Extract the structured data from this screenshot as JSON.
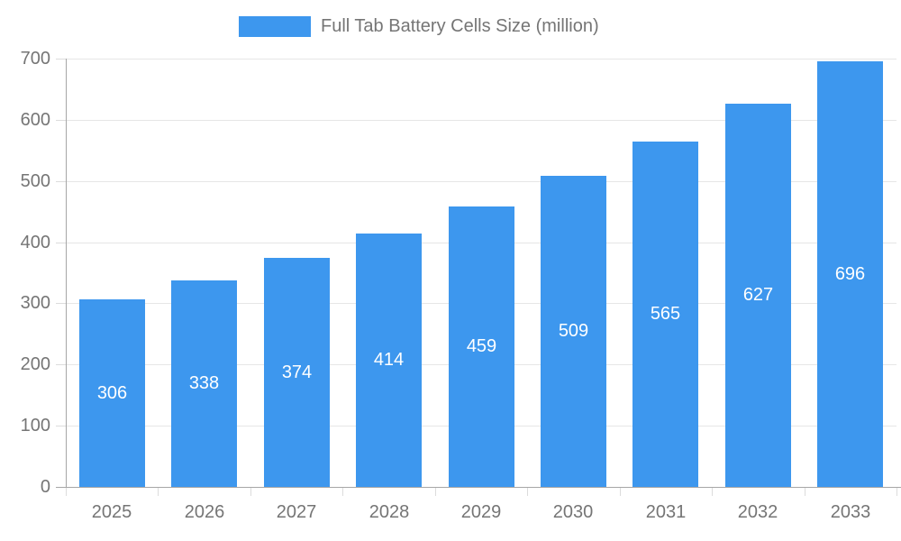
{
  "chart_data": {
    "type": "bar",
    "title": "Full Tab Battery Cells Size (million)",
    "categories": [
      "2025",
      "2026",
      "2027",
      "2028",
      "2029",
      "2030",
      "2031",
      "2032",
      "2033"
    ],
    "values": [
      306,
      338,
      374,
      414,
      459,
      509,
      565,
      627,
      696
    ],
    "series": [
      {
        "name": "Full Tab Battery Cells Size (million)",
        "values": [
          306,
          338,
          374,
          414,
          459,
          509,
          565,
          627,
          696
        ]
      }
    ],
    "xlabel": "",
    "ylabel": "",
    "ylim": [
      0,
      700
    ],
    "yticks": [
      0,
      100,
      200,
      300,
      400,
      500,
      600,
      700
    ],
    "grid": "horizontal",
    "legend_position": "top",
    "value_labels": "inside-center",
    "colors": {
      "bar": "#3D97EE",
      "value_label": "#ffffff",
      "axis": "#a6a6a6",
      "grid": "#e6e6e6",
      "tick_mark": "#dcdcdc",
      "tick_text": "#757575",
      "legend_text": "#757575"
    }
  }
}
